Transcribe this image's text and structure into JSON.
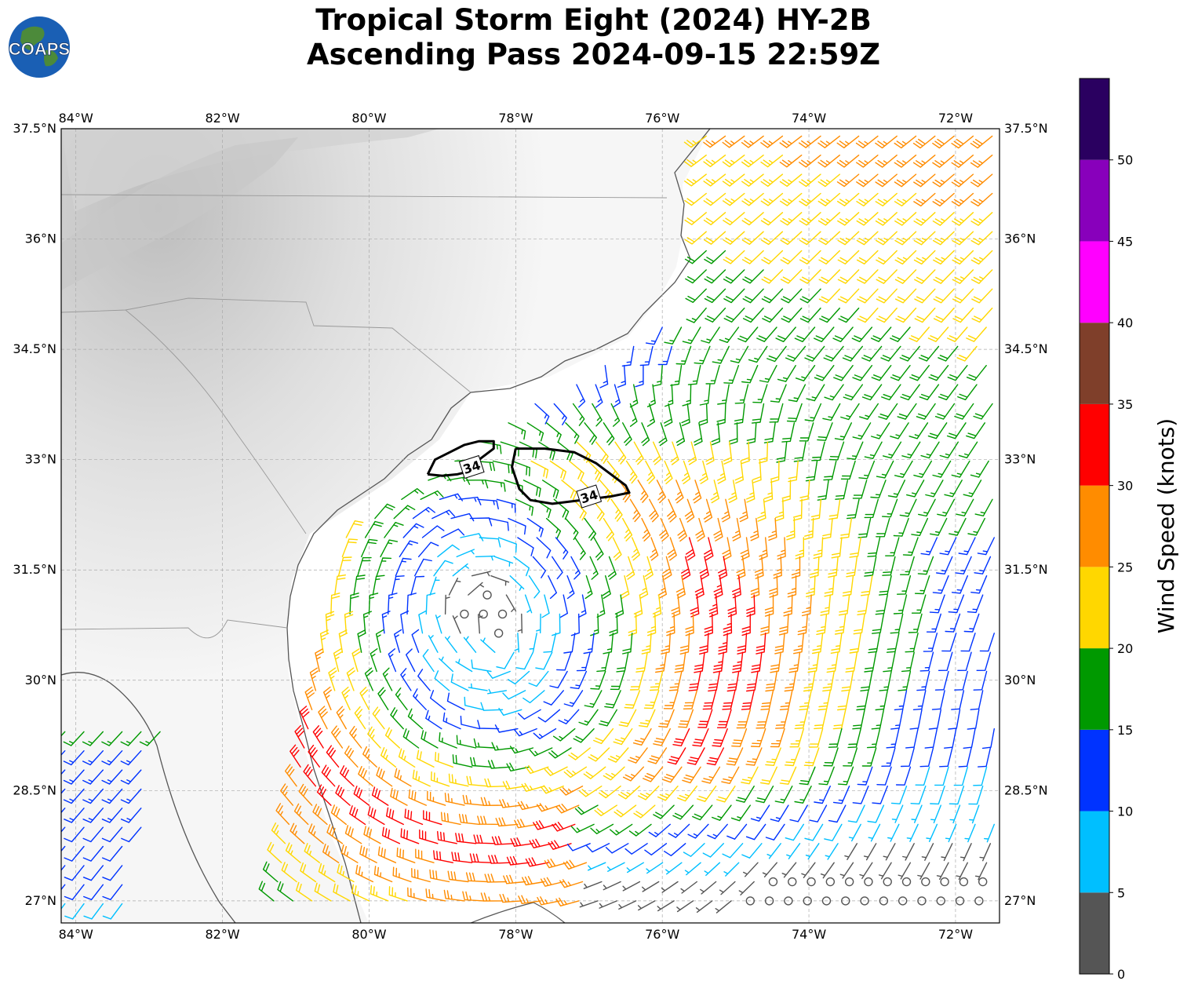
{
  "title_line1": "Tropical Storm Eight (2024) HY-2B",
  "title_line2": "Ascending Pass 2024-09-15 22:59Z",
  "logo_text": "COAPS",
  "map": {
    "lon_range": [
      -84.2,
      -71.4
    ],
    "lat_range": [
      26.7,
      37.5
    ],
    "lon_ticks": [
      {
        "value": -84,
        "label": "84°W"
      },
      {
        "value": -82,
        "label": "82°W"
      },
      {
        "value": -80,
        "label": "80°W"
      },
      {
        "value": -78,
        "label": "78°W"
      },
      {
        "value": -76,
        "label": "76°W"
      },
      {
        "value": -74,
        "label": "74°W"
      },
      {
        "value": -72,
        "label": "72°W"
      }
    ],
    "lat_ticks": [
      {
        "value": 37.5,
        "label": "37.5°N"
      },
      {
        "value": 36,
        "label": "36°N"
      },
      {
        "value": 34.5,
        "label": "34.5°N"
      },
      {
        "value": 33,
        "label": "33°N"
      },
      {
        "value": 31.5,
        "label": "31.5°N"
      },
      {
        "value": 30,
        "label": "30°N"
      },
      {
        "value": 28.5,
        "label": "28.5°N"
      },
      {
        "value": 27,
        "label": "27°N"
      }
    ],
    "storm_center": {
      "lon": -78.2,
      "lat": 30.4
    },
    "contour_label": "34",
    "contours": [
      {
        "label_lon": -78.6,
        "label_lat": 32.9,
        "points": [
          [
            -79.2,
            32.8
          ],
          [
            -79.1,
            33.0
          ],
          [
            -78.9,
            33.1
          ],
          [
            -78.7,
            33.2
          ],
          [
            -78.5,
            33.25
          ],
          [
            -78.3,
            33.25
          ],
          [
            -78.3,
            33.15
          ],
          [
            -78.5,
            33.0
          ],
          [
            -78.6,
            32.85
          ],
          [
            -78.8,
            32.8
          ],
          [
            -79.0,
            32.78
          ],
          [
            -79.2,
            32.8
          ]
        ]
      },
      {
        "label_lon": -77.0,
        "label_lat": 32.5,
        "points": [
          [
            -78.0,
            33.15
          ],
          [
            -77.6,
            33.15
          ],
          [
            -77.2,
            33.1
          ],
          [
            -76.9,
            32.95
          ],
          [
            -76.7,
            32.8
          ],
          [
            -76.5,
            32.65
          ],
          [
            -76.45,
            32.55
          ],
          [
            -76.7,
            32.5
          ],
          [
            -77.1,
            32.45
          ],
          [
            -77.5,
            32.4
          ],
          [
            -77.8,
            32.45
          ],
          [
            -77.95,
            32.6
          ],
          [
            -78.05,
            32.9
          ],
          [
            -78.0,
            33.15
          ]
        ]
      }
    ]
  },
  "legend": {
    "title": "Wind Speed (knots)",
    "ticks": [
      0,
      5,
      10,
      15,
      20,
      25,
      30,
      35,
      40,
      45,
      50
    ],
    "colors": [
      "#555555",
      "#00bfff",
      "#0033ff",
      "#009900",
      "#ffd700",
      "#ff8c00",
      "#ff0000",
      "#7f3f2a",
      "#ff00ff",
      "#8800bb",
      "#2a0060"
    ]
  }
}
